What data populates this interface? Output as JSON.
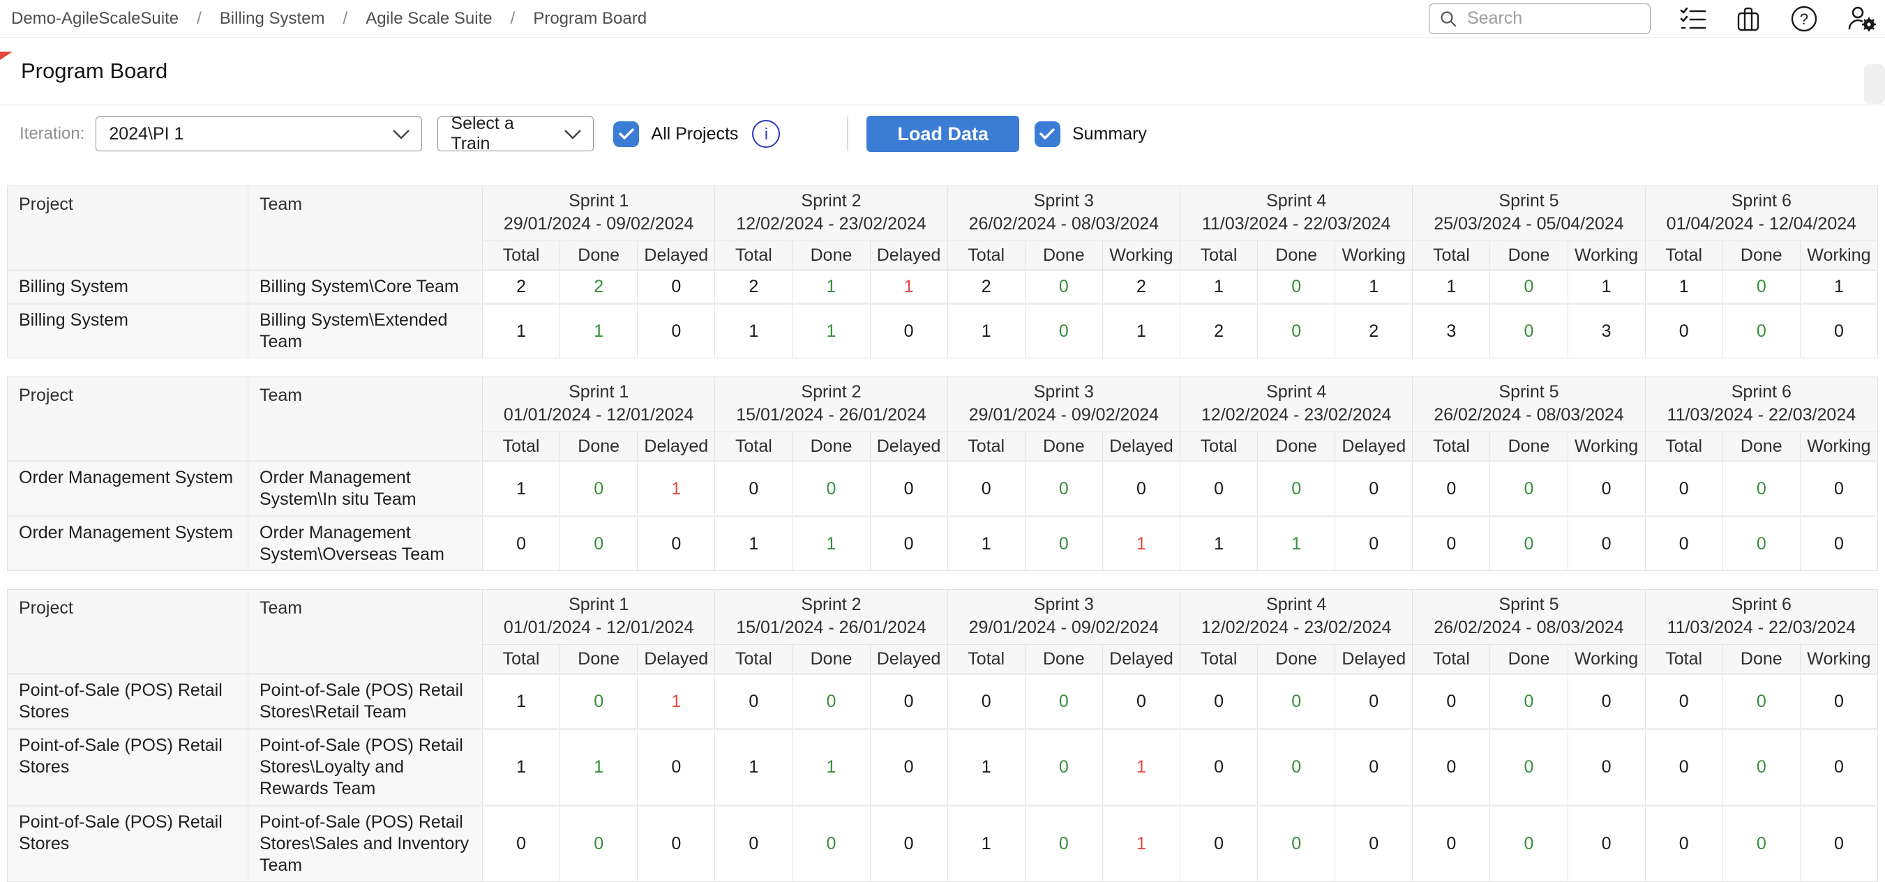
{
  "breadcrumb": {
    "separator": "/",
    "items": [
      "Demo-AgileScaleSuite",
      "Billing System",
      "Agile Scale Suite",
      "Program Board"
    ]
  },
  "topbar": {
    "search_placeholder": "Search",
    "icons": [
      "checklist-icon",
      "briefcase-icon",
      "help-icon",
      "user-settings-icon"
    ]
  },
  "page": {
    "title": "Program Board"
  },
  "toolbar": {
    "iteration_label": "Iteration:",
    "iteration_value": "2024\\PI 1",
    "train_placeholder": "Select a Train",
    "all_projects_label": "All Projects",
    "all_projects_checked": true,
    "info_glyph": "i",
    "load_button": "Load Data",
    "summary_label": "Summary",
    "summary_checked": true
  },
  "colors": {
    "accent_blue": "#3b7cd5",
    "done_green": "#388e3c",
    "delayed_red": "#e5493f",
    "info_blue": "#2f3ac0"
  },
  "tables": [
    {
      "project_header": "Project",
      "team_header": "Team",
      "sprints": [
        {
          "name": "Sprint 1",
          "dates": "29/01/2024 - 09/02/2024",
          "cols": [
            "Total",
            "Done",
            "Delayed"
          ]
        },
        {
          "name": "Sprint 2",
          "dates": "12/02/2024 - 23/02/2024",
          "cols": [
            "Total",
            "Done",
            "Delayed"
          ]
        },
        {
          "name": "Sprint 3",
          "dates": "26/02/2024 - 08/03/2024",
          "cols": [
            "Total",
            "Done",
            "Working"
          ]
        },
        {
          "name": "Sprint 4",
          "dates": "11/03/2024 - 22/03/2024",
          "cols": [
            "Total",
            "Done",
            "Working"
          ]
        },
        {
          "name": "Sprint 5",
          "dates": "25/03/2024 - 05/04/2024",
          "cols": [
            "Total",
            "Done",
            "Working"
          ]
        },
        {
          "name": "Sprint 6",
          "dates": "01/04/2024 - 12/04/2024",
          "cols": [
            "Total",
            "Done",
            "Working"
          ]
        }
      ],
      "rows": [
        {
          "project": "Billing System",
          "team": "Billing System\\Core Team",
          "values": [
            2,
            2,
            0,
            2,
            1,
            1,
            2,
            0,
            2,
            1,
            0,
            1,
            1,
            0,
            1,
            1,
            0,
            1
          ]
        },
        {
          "project": "Billing System",
          "team": "Billing System\\Extended Team",
          "values": [
            1,
            1,
            0,
            1,
            1,
            0,
            1,
            0,
            1,
            2,
            0,
            2,
            3,
            0,
            3,
            0,
            0,
            0
          ]
        }
      ]
    },
    {
      "project_header": "Project",
      "team_header": "Team",
      "sprints": [
        {
          "name": "Sprint 1",
          "dates": "01/01/2024 - 12/01/2024",
          "cols": [
            "Total",
            "Done",
            "Delayed"
          ]
        },
        {
          "name": "Sprint 2",
          "dates": "15/01/2024 - 26/01/2024",
          "cols": [
            "Total",
            "Done",
            "Delayed"
          ]
        },
        {
          "name": "Sprint 3",
          "dates": "29/01/2024 - 09/02/2024",
          "cols": [
            "Total",
            "Done",
            "Delayed"
          ]
        },
        {
          "name": "Sprint 4",
          "dates": "12/02/2024 - 23/02/2024",
          "cols": [
            "Total",
            "Done",
            "Delayed"
          ]
        },
        {
          "name": "Sprint 5",
          "dates": "26/02/2024 - 08/03/2024",
          "cols": [
            "Total",
            "Done",
            "Working"
          ]
        },
        {
          "name": "Sprint 6",
          "dates": "11/03/2024 - 22/03/2024",
          "cols": [
            "Total",
            "Done",
            "Working"
          ]
        }
      ],
      "rows": [
        {
          "project": "Order Management System",
          "team": "Order Management System\\In situ Team",
          "values": [
            1,
            0,
            1,
            0,
            0,
            0,
            0,
            0,
            0,
            0,
            0,
            0,
            0,
            0,
            0,
            0,
            0,
            0
          ]
        },
        {
          "project": "Order Management System",
          "team": "Order Management System\\Overseas Team",
          "values": [
            0,
            0,
            0,
            1,
            1,
            0,
            1,
            0,
            1,
            1,
            1,
            0,
            0,
            0,
            0,
            0,
            0,
            0
          ]
        }
      ]
    },
    {
      "project_header": "Project",
      "team_header": "Team",
      "sprints": [
        {
          "name": "Sprint 1",
          "dates": "01/01/2024 - 12/01/2024",
          "cols": [
            "Total",
            "Done",
            "Delayed"
          ]
        },
        {
          "name": "Sprint 2",
          "dates": "15/01/2024 - 26/01/2024",
          "cols": [
            "Total",
            "Done",
            "Delayed"
          ]
        },
        {
          "name": "Sprint 3",
          "dates": "29/01/2024 - 09/02/2024",
          "cols": [
            "Total",
            "Done",
            "Delayed"
          ]
        },
        {
          "name": "Sprint 4",
          "dates": "12/02/2024 - 23/02/2024",
          "cols": [
            "Total",
            "Done",
            "Delayed"
          ]
        },
        {
          "name": "Sprint 5",
          "dates": "26/02/2024 - 08/03/2024",
          "cols": [
            "Total",
            "Done",
            "Working"
          ]
        },
        {
          "name": "Sprint 6",
          "dates": "11/03/2024 - 22/03/2024",
          "cols": [
            "Total",
            "Done",
            "Working"
          ]
        }
      ],
      "rows": [
        {
          "project": "Point-of-Sale (POS) Retail Stores",
          "team": "Point-of-Sale (POS) Retail Stores\\Retail Team",
          "values": [
            1,
            0,
            1,
            0,
            0,
            0,
            0,
            0,
            0,
            0,
            0,
            0,
            0,
            0,
            0,
            0,
            0,
            0
          ]
        },
        {
          "project": "Point-of-Sale (POS) Retail Stores",
          "team": "Point-of-Sale (POS) Retail Stores\\Loyalty and Rewards Team",
          "values": [
            1,
            1,
            0,
            1,
            1,
            0,
            1,
            0,
            1,
            0,
            0,
            0,
            0,
            0,
            0,
            0,
            0,
            0
          ]
        },
        {
          "project": "Point-of-Sale (POS) Retail Stores",
          "team": "Point-of-Sale (POS) Retail Stores\\Sales and Inventory Team",
          "values": [
            0,
            0,
            0,
            0,
            0,
            0,
            1,
            0,
            1,
            0,
            0,
            0,
            0,
            0,
            0,
            0,
            0,
            0
          ]
        }
      ]
    }
  ]
}
